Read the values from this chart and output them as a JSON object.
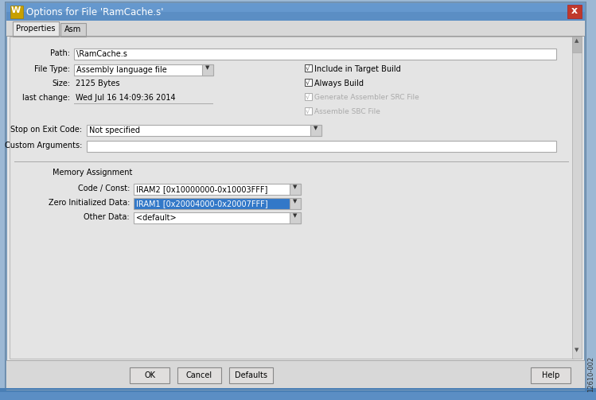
{
  "title": "Options for File 'RamCache.s'",
  "tab1": "Properties",
  "tab2": "Asm",
  "path_label": "Path:",
  "path_value": "\\RamCache.s",
  "filetype_label": "File Type:",
  "filetype_value": "Assembly language file",
  "size_label": "Size:",
  "size_value": "2125 Bytes",
  "lastchange_label": "last change:",
  "lastchange_value": "Wed Jul 16 14:09:36 2014",
  "stopexit_label": "Stop on Exit Code:",
  "stopexit_value": "Not specified",
  "customargs_label": "Custom Arguments:",
  "memassign_label": "Memory Assignment",
  "codeconst_label": "Code / Const:",
  "codeconst_value": "IRAM2 [0x10000000-0x10003FFF]",
  "zeroinit_label": "Zero Initialized Data:",
  "zeroinit_value": "IRAM1 [0x20004000-0x20007FFF]",
  "otherdata_label": "Other Data:",
  "otherdata_value": "<default>",
  "check1": "Include in Target Build",
  "check2": "Always Build",
  "check3": "Generate Assembler SRC File",
  "check4": "Assemble SBC File",
  "btn_ok": "OK",
  "btn_cancel": "Cancel",
  "btn_defaults": "Defaults",
  "btn_help": "Help",
  "figure_label": "12610-002",
  "outer_bg": "#9cb8d4",
  "title_bg_top": "#6a9fd0",
  "title_bg_bot": "#4a7fb5",
  "dialog_bg": "#e8e8e8",
  "content_bg": "#e4e4e4",
  "titlebar_text": "#ffffff",
  "close_btn_color": "#c0392b",
  "highlight_color": "#3278c8",
  "highlight_text": "#ffffff",
  "field_bg": "#ffffff",
  "text_color": "#000000",
  "disabled_color": "#aaaaaa",
  "btn_bg": "#e0dedd",
  "separator_color": "#aaaaaa",
  "scrollbar_bg": "#d0d0d0",
  "scrollbar_thumb": "#b0b0b0",
  "border_color": "#7a9ab8",
  "tab_active_bg": "#e8e8e8",
  "tab_inactive_bg": "#d0d0d0",
  "tab_border": "#999999",
  "arrow_bg": "#d0d0d0",
  "arrow_color": "#333333",
  "check_color_active": "#404040",
  "check_color_disabled": "#aaaaaa"
}
